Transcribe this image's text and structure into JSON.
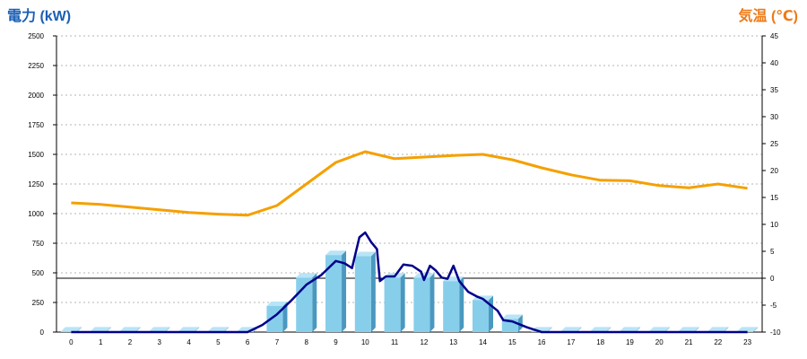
{
  "chart_data": {
    "type": "bar",
    "ylabel": "電力 (kW)",
    "y2label": "気温 (℃)",
    "categories": [
      "0",
      "1",
      "2",
      "3",
      "4",
      "5",
      "6",
      "7",
      "8",
      "9",
      "10",
      "11",
      "12",
      "13",
      "14",
      "15",
      "16",
      "17",
      "18",
      "19",
      "20",
      "21",
      "22",
      "23"
    ],
    "ylim": [
      0,
      2500
    ],
    "y_ticks": [
      0,
      250,
      500,
      750,
      1000,
      1250,
      1500,
      1750,
      2000,
      2250,
      2500
    ],
    "y2lim": [
      -10,
      45
    ],
    "y2_ticks": [
      -10,
      -5,
      0,
      5,
      10,
      15,
      20,
      25,
      30,
      35,
      40,
      45
    ],
    "grid": true,
    "series": [
      {
        "kind": "bar",
        "axis": "left",
        "color": "#87ceeb",
        "values": [
          5,
          5,
          5,
          5,
          5,
          5,
          5,
          220,
          460,
          650,
          640,
          460,
          460,
          430,
          270,
          110,
          5,
          5,
          5,
          5,
          5,
          5,
          5,
          5
        ]
      },
      {
        "kind": "line",
        "axis": "left",
        "color": "#00008b",
        "x": [
          0,
          1,
          2,
          3,
          4,
          5,
          6,
          6.5,
          7,
          7.5,
          8,
          8.5,
          9,
          9.3,
          9.55,
          9.8,
          10,
          10.2,
          10.4,
          10.5,
          10.7,
          11,
          11.3,
          11.6,
          11.9,
          12,
          12.2,
          12.4,
          12.6,
          12.8,
          13,
          13.2,
          13.5,
          13.8,
          14,
          14.2,
          14.5,
          14.7,
          15,
          15.5,
          16,
          17,
          18,
          19,
          20,
          21,
          22,
          23
        ],
        "y": [
          0,
          0,
          0,
          0,
          0,
          0,
          0,
          60,
          150,
          270,
          400,
          480,
          600,
          580,
          540,
          800,
          840,
          760,
          700,
          430,
          470,
          470,
          570,
          560,
          510,
          440,
          560,
          520,
          460,
          450,
          560,
          430,
          340,
          300,
          280,
          240,
          180,
          100,
          90,
          40,
          0,
          0,
          0,
          0,
          0,
          0,
          0,
          0
        ]
      },
      {
        "kind": "line",
        "axis": "right",
        "color": "#f5a000",
        "x": [
          0,
          1,
          2,
          3,
          4,
          5,
          6,
          7,
          8,
          9,
          10,
          11,
          12,
          13,
          14,
          15,
          16,
          17,
          18,
          19,
          20,
          21,
          22,
          23
        ],
        "y": [
          14,
          13.7,
          13.2,
          12.7,
          12.2,
          11.9,
          11.7,
          13.5,
          17.5,
          21.5,
          23.5,
          22.2,
          22.5,
          22.8,
          23,
          22,
          20.5,
          19.2,
          18.2,
          18.1,
          17.2,
          16.8,
          17.5,
          16.7
        ]
      }
    ]
  }
}
